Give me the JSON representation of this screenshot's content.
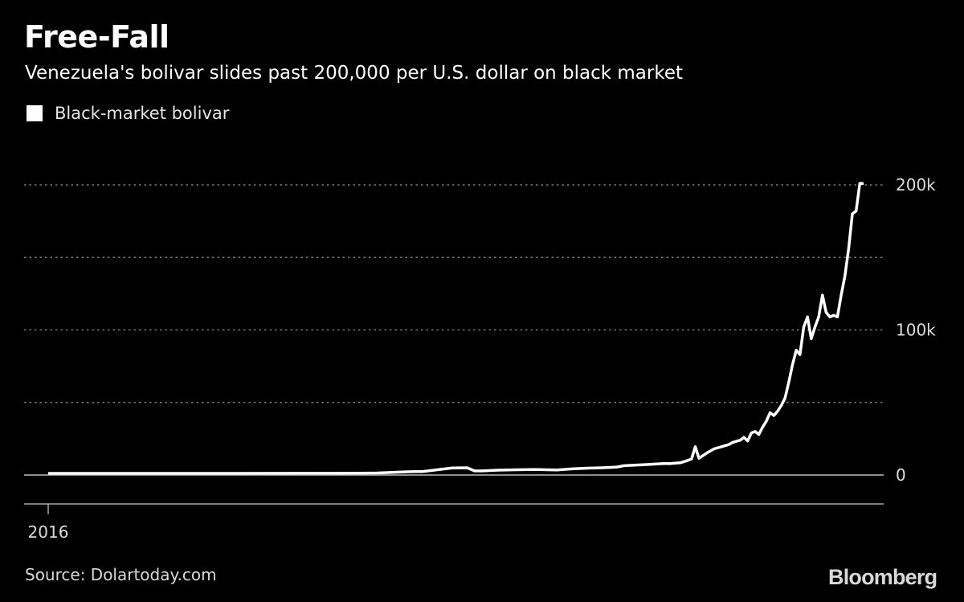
{
  "title": "Free-Fall",
  "subtitle": "Venezuela's bolivar slides past 200,000 per U.S. dollar on black market",
  "source": "Source: Dolartoday.com",
  "logo": "Bloomberg",
  "colors": {
    "background": "#000000",
    "series": "#ffffff",
    "grid": "#7a7a7a",
    "axis": "#a6a6a6"
  },
  "chart_data": {
    "type": "line",
    "title": "Free-Fall",
    "subtitle": "Venezuela's bolivar slides past 200,000 per U.S. dollar on black market",
    "xlabel": "",
    "ylabel": "",
    "x_ticks": [
      "2016"
    ],
    "y_ticks": [
      {
        "value": 0,
        "label": "0"
      },
      {
        "value": 50000,
        "label": ""
      },
      {
        "value": 100000,
        "label": "100k"
      },
      {
        "value": 150000,
        "label": ""
      },
      {
        "value": 200000,
        "label": "200k"
      }
    ],
    "ylim": [
      -20000,
      200000
    ],
    "xlim": [
      2015.97,
      2018.2
    ],
    "grid": "horizontal dotted",
    "legend_position": "top-left",
    "series": [
      {
        "name": "Black-market bolivar",
        "x": [
          2016.0,
          2016.5,
          2016.78,
          2016.84,
          2016.88,
          2016.9,
          2016.92,
          2016.94,
          2016.96,
          2016.98,
          2017.0,
          2017.08,
          2017.12,
          2017.14,
          2017.16,
          2017.2,
          2017.3,
          2017.36,
          2017.4,
          2017.44,
          2017.48,
          2017.52,
          2017.54,
          2017.6,
          2017.65,
          2017.66,
          2017.69,
          2017.7,
          2017.72,
          2017.73,
          2017.74,
          2017.76,
          2017.78,
          2017.8,
          2017.82,
          2017.83,
          2017.85,
          2017.86,
          2017.87,
          2017.88,
          2017.89,
          2017.9,
          2017.91,
          2017.92,
          2017.93,
          2017.94,
          2017.95,
          2017.96,
          2017.97,
          2017.98,
          2017.99,
          2018.0,
          2018.01,
          2018.02,
          2018.03,
          2018.04,
          2018.05,
          2018.06,
          2018.07,
          2018.08,
          2018.09,
          2018.1,
          2018.11,
          2018.12,
          2018.13,
          2018.14,
          2018.15,
          2018.16,
          2018.17,
          2018.18
        ],
        "values": [
          1100,
          1100,
          1150,
          1200,
          1400,
          1600,
          1800,
          2000,
          2200,
          2400,
          2400,
          4800,
          5000,
          2800,
          2800,
          3300,
          3800,
          3500,
          4200,
          4700,
          5000,
          5500,
          6400,
          7200,
          8000,
          7800,
          8500,
          9200,
          11000,
          19500,
          11500,
          15000,
          18000,
          19500,
          21000,
          22500,
          24000,
          26000,
          23500,
          29000,
          30000,
          28000,
          33000,
          37000,
          43000,
          41000,
          44000,
          48000,
          53000,
          64000,
          76000,
          86000,
          83000,
          102000,
          109000,
          94000,
          102000,
          109000,
          124000,
          112000,
          109000,
          110000,
          109000,
          124000,
          137000,
          156000,
          180000,
          182000,
          201000,
          201000
        ]
      }
    ]
  }
}
